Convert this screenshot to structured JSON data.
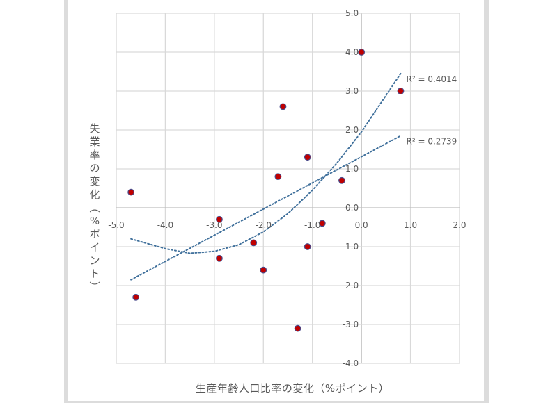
{
  "chart_data": {
    "type": "scatter",
    "title": "",
    "xlabel": "生産年齢人口比率の変化（%ポイント）",
    "ylabel": "失業率の変化（%ポイント）",
    "xlim": [
      -5.0,
      2.0
    ],
    "ylim": [
      -4.0,
      5.0
    ],
    "x_ticks": [
      "-5.0",
      "-4.0",
      "-3.0",
      "-2.0",
      "-1.0",
      "0.0",
      "1.0",
      "2.0"
    ],
    "y_ticks": [
      "5.0",
      "4.0",
      "3.0",
      "2.0",
      "1.0",
      "0.0",
      "-1.0",
      "-2.0",
      "-3.0",
      "-4.0"
    ],
    "grid": true,
    "legend": "none",
    "series": [
      {
        "name": "data",
        "marker_color": "#c00000",
        "marker_edge": "#4a4a8a",
        "points": [
          {
            "x": 0.0,
            "y": 4.0
          },
          {
            "x": 0.8,
            "y": 3.0
          },
          {
            "x": -1.6,
            "y": 2.6
          },
          {
            "x": -1.1,
            "y": 1.3
          },
          {
            "x": -1.7,
            "y": 0.8
          },
          {
            "x": -0.4,
            "y": 0.7
          },
          {
            "x": -4.7,
            "y": 0.4
          },
          {
            "x": -2.9,
            "y": -0.3
          },
          {
            "x": -0.8,
            "y": -0.4
          },
          {
            "x": -2.2,
            "y": -0.9
          },
          {
            "x": -1.1,
            "y": -1.0
          },
          {
            "x": -2.9,
            "y": -1.3
          },
          {
            "x": -2.0,
            "y": -1.6
          },
          {
            "x": -4.6,
            "y": -2.3
          },
          {
            "x": -1.3,
            "y": -3.1
          }
        ]
      }
    ],
    "trendlines": [
      {
        "type": "linear",
        "r2_label": "R² = 0.2739",
        "color": "#41719c",
        "style": "dotted",
        "x_range": [
          -4.7,
          0.8
        ],
        "y_start": -1.85,
        "y_end": 1.85
      },
      {
        "type": "polynomial",
        "r2_label": "R² = 0.4014",
        "color": "#41719c",
        "style": "dotted",
        "x_range": [
          -4.7,
          0.8
        ],
        "points": [
          [
            -4.7,
            -0.8
          ],
          [
            -4.0,
            -1.05
          ],
          [
            -3.5,
            -1.17
          ],
          [
            -3.0,
            -1.12
          ],
          [
            -2.5,
            -0.95
          ],
          [
            -2.0,
            -0.62
          ],
          [
            -1.5,
            -0.15
          ],
          [
            -1.0,
            0.45
          ],
          [
            -0.5,
            1.15
          ],
          [
            0.0,
            1.95
          ],
          [
            0.4,
            2.7
          ],
          [
            0.8,
            3.45
          ]
        ]
      }
    ]
  }
}
